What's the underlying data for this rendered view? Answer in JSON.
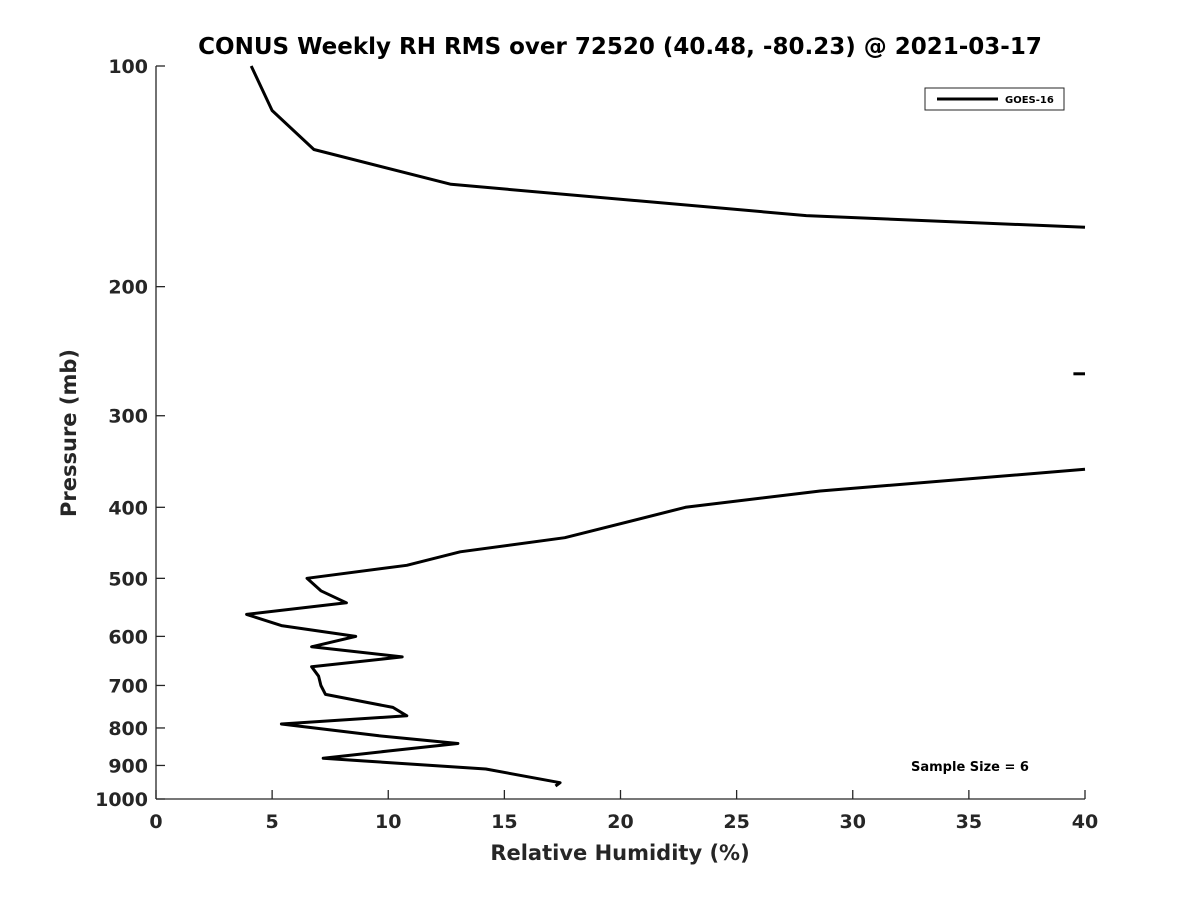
{
  "chart_data": {
    "type": "line",
    "title": "CONUS Weekly RH RMS over 72520 (40.48, -80.23) @ 2021-03-17",
    "xlabel": "Relative Humidity (%)",
    "ylabel": "Pressure (mb)",
    "xlim": [
      0,
      40
    ],
    "ylim": [
      100,
      1000
    ],
    "y_scale": "log",
    "y_reversed": true,
    "grid": false,
    "legend_position": "top-right",
    "x_ticks": [
      "0",
      "5",
      "10",
      "15",
      "20",
      "25",
      "30",
      "35",
      "40"
    ],
    "y_ticks": [
      "100",
      "200",
      "300",
      "400",
      "500",
      "600",
      "700",
      "800",
      "900",
      "1000"
    ],
    "annotation": "Sample Size = 6",
    "series": [
      {
        "name": "GOES-16",
        "color": "#000000",
        "segments": [
          [
            {
              "x": 4.1,
              "y": 100
            },
            {
              "x": 5.0,
              "y": 115
            },
            {
              "x": 6.8,
              "y": 130
            },
            {
              "x": 12.7,
              "y": 145
            },
            {
              "x": 28.0,
              "y": 160
            },
            {
              "x": 40.0,
              "y": 166
            }
          ],
          [
            {
              "x": 39.5,
              "y": 263
            },
            {
              "x": 40.0,
              "y": 263
            }
          ],
          [
            {
              "x": 40.0,
              "y": 355
            },
            {
              "x": 28.6,
              "y": 380
            },
            {
              "x": 22.8,
              "y": 400
            },
            {
              "x": 17.6,
              "y": 440
            },
            {
              "x": 13.1,
              "y": 460
            },
            {
              "x": 10.8,
              "y": 480
            },
            {
              "x": 6.5,
              "y": 500
            },
            {
              "x": 7.1,
              "y": 520
            },
            {
              "x": 8.2,
              "y": 540
            },
            {
              "x": 3.9,
              "y": 560
            },
            {
              "x": 5.4,
              "y": 580
            },
            {
              "x": 8.6,
              "y": 600
            },
            {
              "x": 6.7,
              "y": 620
            },
            {
              "x": 10.6,
              "y": 640
            },
            {
              "x": 6.7,
              "y": 660
            },
            {
              "x": 7.0,
              "y": 680
            },
            {
              "x": 7.1,
              "y": 700
            },
            {
              "x": 7.3,
              "y": 720
            },
            {
              "x": 10.2,
              "y": 750
            },
            {
              "x": 10.8,
              "y": 770
            },
            {
              "x": 5.4,
              "y": 790
            },
            {
              "x": 9.6,
              "y": 820
            },
            {
              "x": 13.0,
              "y": 840
            },
            {
              "x": 10.0,
              "y": 860
            },
            {
              "x": 7.2,
              "y": 880
            },
            {
              "x": 14.2,
              "y": 910
            },
            {
              "x": 17.4,
              "y": 950
            },
            {
              "x": 17.2,
              "y": 960
            }
          ]
        ]
      }
    ]
  }
}
